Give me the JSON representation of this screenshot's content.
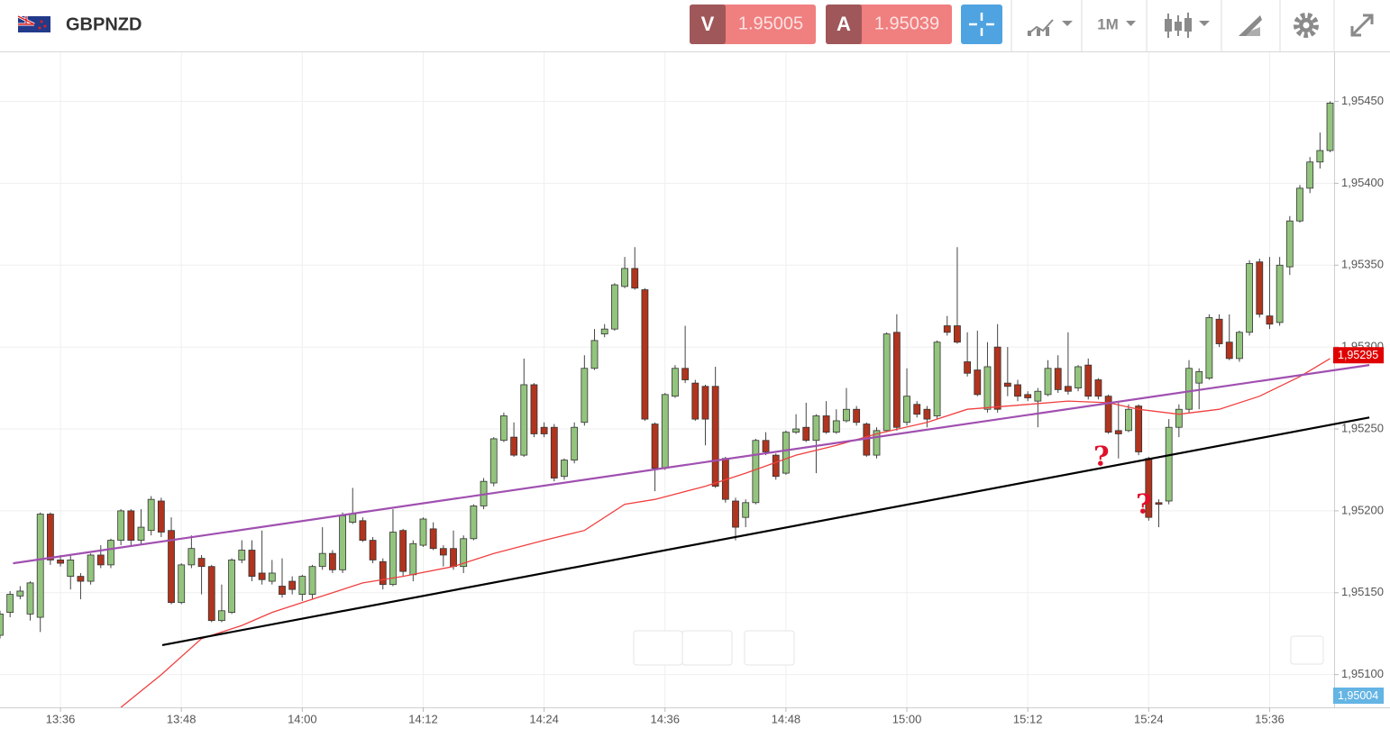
{
  "header": {
    "symbol": "GBPNZD",
    "sell_label": "V",
    "sell_price": "1.95005",
    "buy_label": "A",
    "buy_price": "1.95039",
    "timeframe": "1M"
  },
  "chart_data": {
    "type": "candlestick",
    "categories": [
      null,
      null,
      null,
      null,
      null,
      null,
      "13:36",
      null,
      null,
      null,
      null,
      null,
      null,
      null,
      null,
      null,
      null,
      null,
      "13:48",
      null,
      null,
      null,
      null,
      null,
      null,
      null,
      null,
      null,
      null,
      null,
      "14:00",
      null,
      null,
      null,
      null,
      null,
      null,
      null,
      null,
      null,
      null,
      null,
      "14:12",
      null,
      null,
      null,
      null,
      null,
      null,
      null,
      null,
      null,
      null,
      null,
      "14:24",
      null,
      null,
      null,
      null,
      null,
      null,
      null,
      null,
      null,
      null,
      null,
      "14:36",
      null,
      null,
      null,
      null,
      null,
      null,
      null,
      null,
      null,
      null,
      null,
      "14:48",
      null,
      null,
      null,
      null,
      null,
      null,
      null,
      null,
      null,
      null,
      null,
      "15:00",
      null,
      null,
      null,
      null,
      null,
      null,
      null,
      null,
      null,
      null,
      null,
      "15:12",
      null,
      null,
      null,
      null,
      null,
      null,
      null,
      null,
      null,
      null,
      null,
      "15:24",
      null,
      null,
      null,
      null,
      null,
      null,
      null,
      null,
      null,
      null,
      null,
      "15:36",
      null,
      null,
      null,
      null,
      null,
      null
    ],
    "open": [
      1.95124,
      1.95138,
      1.95148,
      1.95137,
      1.95135,
      1.95198,
      1.9517,
      1.9516,
      1.9516,
      1.95157,
      1.95173,
      1.95167,
      1.95182,
      1.952,
      1.95182,
      1.95188,
      1.95206,
      1.95188,
      1.95144,
      1.95167,
      1.95171,
      1.95166,
      1.95133,
      1.95138,
      1.9517,
      1.95176,
      1.95162,
      1.95157,
      1.95154,
      1.95157,
      1.95149,
      1.95149,
      1.95166,
      1.95174,
      1.95164,
      1.95193,
      1.95194,
      1.95182,
      1.95169,
      1.95155,
      1.95188,
      1.95161,
      1.95179,
      1.95189,
      1.95177,
      1.95177,
      1.95166,
      1.95183,
      1.95203,
      1.95217,
      1.95243,
      1.95245,
      1.95234,
      1.95277,
      1.95251,
      1.95251,
      1.95221,
      1.95231,
      1.95254,
      1.95287,
      1.95308,
      1.95311,
      1.95337,
      1.95348,
      1.95335,
      1.95253,
      1.95226,
      1.9527,
      1.95287,
      1.95278,
      1.95276,
      1.95276,
      1.95232,
      1.95206,
      1.95196,
      1.95205,
      1.95243,
      1.95234,
      1.95223,
      1.95248,
      1.95251,
      1.95243,
      1.95258,
      1.95248,
      1.95255,
      1.95262,
      1.95253,
      1.95234,
      1.95249,
      1.95309,
      1.95254,
      1.95265,
      1.95262,
      1.95258,
      1.95313,
      1.95313,
      1.95291,
      1.95286,
      1.95262,
      1.953,
      1.95278,
      1.95277,
      1.95271,
      1.95267,
      1.95271,
      1.95287,
      1.95276,
      1.95275,
      1.95289,
      1.9528,
      1.9527,
      1.95249,
      1.95249,
      1.95264,
      1.95232,
      1.95205,
      1.95206,
      1.95251,
      1.95262,
      1.95278,
      1.95281,
      1.95317,
      1.95303,
      1.95293,
      1.95309,
      1.95352,
      1.95319,
      1.95315,
      1.95349,
      1.95377,
      1.95397,
      1.95413,
      1.9542
    ],
    "high": [
      1.95139,
      1.95151,
      1.95154,
      1.95157,
      1.95199,
      1.95199,
      1.95173,
      1.95173,
      1.95162,
      1.95174,
      1.95179,
      1.95183,
      1.95201,
      1.95201,
      1.95201,
      1.95209,
      1.95208,
      1.95196,
      1.95168,
      1.95185,
      1.95173,
      1.95167,
      1.95155,
      1.95171,
      1.95182,
      1.95182,
      1.95188,
      1.9517,
      1.95171,
      1.9516,
      1.95161,
      1.95167,
      1.9519,
      1.95176,
      1.95199,
      1.95214,
      1.95196,
      1.95184,
      1.95171,
      1.95201,
      1.95189,
      1.95182,
      1.95196,
      1.95193,
      1.95179,
      1.95188,
      1.95185,
      1.95204,
      1.9522,
      1.95245,
      1.9526,
      1.95254,
      1.95293,
      1.95278,
      1.95254,
      1.95253,
      1.95232,
      1.95254,
      1.95295,
      1.95311,
      1.95314,
      1.95339,
      1.95355,
      1.95361,
      1.95336,
      1.95254,
      1.95272,
      1.95289,
      1.95313,
      1.9528,
      1.95277,
      1.95288,
      1.95233,
      1.95208,
      1.95207,
      1.95244,
      1.95248,
      1.95235,
      1.95249,
      1.95259,
      1.95266,
      1.95259,
      1.95267,
      1.95262,
      1.95275,
      1.95264,
      1.95254,
      1.95251,
      1.95309,
      1.9532,
      1.95287,
      1.95267,
      1.95264,
      1.95304,
      1.95319,
      1.95361,
      1.95309,
      1.9531,
      1.95303,
      1.95314,
      1.953,
      1.9528,
      1.95273,
      1.95275,
      1.95292,
      1.95295,
      1.95309,
      1.95289,
      1.95293,
      1.95281,
      1.95271,
      1.95266,
      1.95265,
      1.95265,
      1.95233,
      1.95207,
      1.95256,
      1.95265,
      1.95292,
      1.95287,
      1.9532,
      1.9532,
      1.9532,
      1.9531,
      1.95353,
      1.95354,
      1.95355,
      1.95355,
      1.9538,
      1.95399,
      1.95416,
      1.95431,
      1.9545
    ],
    "low": [
      1.95122,
      1.95135,
      1.95146,
      1.95133,
      1.95126,
      1.95167,
      1.95166,
      1.95152,
      1.95146,
      1.95155,
      1.95165,
      1.95165,
      1.95179,
      1.95179,
      1.95179,
      1.95185,
      1.95184,
      1.95143,
      1.95143,
      1.95165,
      1.95149,
      1.95132,
      1.95132,
      1.95137,
      1.95168,
      1.95157,
      1.95155,
      1.95155,
      1.95147,
      1.95149,
      1.95145,
      1.95146,
      1.95164,
      1.95162,
      1.95162,
      1.95192,
      1.95181,
      1.95168,
      1.95152,
      1.95154,
      1.9516,
      1.95157,
      1.95178,
      1.95176,
      1.95166,
      1.95164,
      1.95162,
      1.95182,
      1.95201,
      1.95215,
      1.95242,
      1.95233,
      1.95233,
      1.95245,
      1.95245,
      1.95218,
      1.95219,
      1.95229,
      1.95252,
      1.95286,
      1.95306,
      1.9531,
      1.95336,
      1.95335,
      1.95255,
      1.95212,
      1.95225,
      1.95269,
      1.95278,
      1.95255,
      1.9524,
      1.95214,
      1.95205,
      1.95182,
      1.9519,
      1.95204,
      1.95234,
      1.95219,
      1.95222,
      1.95247,
      1.95242,
      1.95223,
      1.95247,
      1.95247,
      1.95254,
      1.95252,
      1.95233,
      1.95232,
      1.95248,
      1.95249,
      1.95252,
      1.95257,
      1.95251,
      1.95256,
      1.95307,
      1.95302,
      1.95282,
      1.9527,
      1.9526,
      1.9526,
      1.9527,
      1.95267,
      1.95267,
      1.95251,
      1.9527,
      1.95272,
      1.95271,
      1.95273,
      1.95268,
      1.95268,
      1.95247,
      1.95232,
      1.95248,
      1.95234,
      1.95194,
      1.9519,
      1.95204,
      1.95245,
      1.9526,
      1.95262,
      1.9528,
      1.953,
      1.95292,
      1.95291,
      1.95307,
      1.95318,
      1.95311,
      1.95313,
      1.95344,
      1.95376,
      1.95394,
      1.95409,
      1.95419
    ],
    "close": [
      1.95137,
      1.95149,
      1.95151,
      1.95156,
      1.95198,
      1.9517,
      1.95168,
      1.9517,
      1.95157,
      1.95173,
      1.95167,
      1.95182,
      1.952,
      1.95182,
      1.9519,
      1.95207,
      1.95187,
      1.95144,
      1.95167,
      1.95177,
      1.95166,
      1.95133,
      1.95139,
      1.9517,
      1.95176,
      1.9516,
      1.95158,
      1.95162,
      1.95149,
      1.95152,
      1.9516,
      1.95166,
      1.95174,
      1.95164,
      1.95197,
      1.95198,
      1.95182,
      1.9517,
      1.95155,
      1.95187,
      1.95163,
      1.9518,
      1.95195,
      1.95177,
      1.95173,
      1.95166,
      1.95183,
      1.95203,
      1.95218,
      1.95244,
      1.95258,
      1.95234,
      1.95277,
      1.95247,
      1.95247,
      1.9522,
      1.95231,
      1.95251,
      1.95287,
      1.95304,
      1.95311,
      1.95338,
      1.95348,
      1.95336,
      1.95256,
      1.95226,
      1.95271,
      1.95287,
      1.9528,
      1.95256,
      1.95256,
      1.95215,
      1.95207,
      1.9519,
      1.95205,
      1.95243,
      1.95236,
      1.95221,
      1.95248,
      1.9525,
      1.95243,
      1.95258,
      1.95248,
      1.95255,
      1.95262,
      1.95254,
      1.95234,
      1.95249,
      1.95308,
      1.95251,
      1.9527,
      1.95259,
      1.95256,
      1.95303,
      1.95309,
      1.95303,
      1.95284,
      1.95271,
      1.95288,
      1.95262,
      1.95276,
      1.9527,
      1.95269,
      1.95273,
      1.95287,
      1.95274,
      1.95273,
      1.95288,
      1.9527,
      1.9527,
      1.95248,
      1.95247,
      1.95262,
      1.95236,
      1.95196,
      1.95204,
      1.95251,
      1.95262,
      1.95287,
      1.95285,
      1.95318,
      1.95302,
      1.95293,
      1.95309,
      1.95351,
      1.9532,
      1.95314,
      1.9535,
      1.95377,
      1.95397,
      1.95413,
      1.9542,
      1.95449
    ],
    "up_color": "#93c47d",
    "down_color": "#b0341e",
    "ma": {
      "color": "#f04040",
      "x": [
        12,
        16,
        20,
        24,
        27,
        31,
        36,
        40,
        45,
        49,
        54,
        58,
        62,
        65,
        70,
        74,
        79,
        83,
        87,
        92,
        96,
        102,
        106,
        110,
        113,
        117,
        121,
        125,
        129,
        132
      ],
      "values": [
        1.9508,
        1.951,
        1.95122,
        1.9513,
        1.95138,
        1.95146,
        1.95156,
        1.9516,
        1.95166,
        1.95174,
        1.95182,
        1.95188,
        1.95204,
        1.95207,
        1.95215,
        1.95223,
        1.95234,
        1.9524,
        1.95247,
        1.95254,
        1.95262,
        1.95265,
        1.95267,
        1.95266,
        1.95262,
        1.95259,
        1.95262,
        1.9527,
        1.95282,
        1.95293
      ]
    },
    "trendlines": [
      {
        "color": "#a050b0",
        "x": [
          1.3,
          135.9
        ],
        "values": [
          1.95168,
          1.95289
        ]
      },
      {
        "color": "#000000",
        "x": [
          16.1,
          135.9
        ],
        "values": [
          1.95118,
          1.95257
        ]
      }
    ],
    "annotations": [
      {
        "text": "?",
        "x": 109.3,
        "y": 1.95232
      },
      {
        "text": "?",
        "x": 113.5,
        "y": 1.95203
      }
    ],
    "price_tags": [
      {
        "value": 1.95295,
        "label": "1,95295",
        "color": "#e00000"
      },
      {
        "value": 1.95004,
        "label": "1,95004",
        "color": "#64b4e4"
      }
    ],
    "xlim": [
      0,
      132.4
    ],
    "ylim": [
      1.9508,
      1.9548
    ],
    "yticks": [
      {
        "value": 1.951,
        "label": "1,95100"
      },
      {
        "value": 1.9515,
        "label": "1,95150"
      },
      {
        "value": 1.952,
        "label": "1,95200"
      },
      {
        "value": 1.9525,
        "label": "1,95250"
      },
      {
        "value": 1.953,
        "label": "1,95300"
      },
      {
        "value": 1.9535,
        "label": "1,95350"
      },
      {
        "value": 1.954,
        "label": "1,95400"
      },
      {
        "value": 1.9545,
        "label": "1,95450"
      }
    ],
    "grid": true
  }
}
